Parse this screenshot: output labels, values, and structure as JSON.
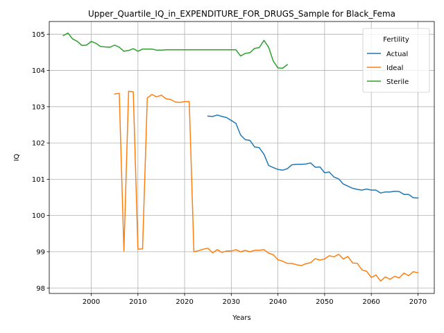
{
  "chart_data": {
    "type": "line",
    "title": "Upper_Quartile_IQ_in_EXPENDITURE_FOR_DRUGS_Sample for Black_Fema",
    "xlabel": "Years",
    "ylabel": "IQ",
    "xlim": [
      1991,
      2073.5
    ],
    "ylim": [
      97.85,
      105.35
    ],
    "xticks": [
      2000,
      2010,
      2020,
      2030,
      2040,
      2050,
      2060,
      2070
    ],
    "yticks": [
      98,
      99,
      100,
      101,
      102,
      103,
      104,
      105
    ],
    "grid": true,
    "legend": {
      "title": "Fertility",
      "placement": "top-right"
    },
    "series": [
      {
        "name": "Actual",
        "color": "#1f77b4",
        "x": [
          2025,
          2026,
          2027,
          2028,
          2029,
          2030,
          2031,
          2032,
          2033,
          2034,
          2035,
          2036,
          2037,
          2038,
          2039,
          2040,
          2041,
          2042,
          2043,
          2044,
          2045,
          2046,
          2047,
          2048,
          2049,
          2050,
          2051,
          2052,
          2053,
          2054,
          2055,
          2056,
          2057,
          2058,
          2059,
          2060,
          2061,
          2062,
          2063,
          2064,
          2065,
          2066,
          2067,
          2068,
          2069,
          2070
        ],
        "y": [
          102.74,
          102.73,
          102.77,
          102.73,
          102.7,
          102.62,
          102.54,
          102.22,
          102.09,
          102.07,
          101.89,
          101.87,
          101.69,
          101.38,
          101.32,
          101.27,
          101.25,
          101.29,
          101.4,
          101.41,
          101.41,
          101.42,
          101.45,
          101.33,
          101.34,
          101.18,
          101.2,
          101.06,
          101.01,
          100.87,
          100.81,
          100.75,
          100.72,
          100.7,
          100.73,
          100.7,
          100.7,
          100.62,
          100.65,
          100.65,
          100.67,
          100.66,
          100.58,
          100.58,
          100.49,
          100.48
        ]
      },
      {
        "name": "Ideal",
        "color": "#ff7f0e",
        "x": [
          2005,
          2006,
          2007,
          2008,
          2009,
          2010,
          2011,
          2012,
          2013,
          2014,
          2015,
          2016,
          2017,
          2018,
          2019,
          2020,
          2021,
          2022,
          2023,
          2024,
          2025,
          2026,
          2027,
          2028,
          2029,
          2030,
          2031,
          2032,
          2033,
          2034,
          2035,
          2036,
          2037,
          2038,
          2039,
          2040,
          2041,
          2042,
          2043,
          2044,
          2045,
          2046,
          2047,
          2048,
          2049,
          2050,
          2051,
          2052,
          2053,
          2054,
          2055,
          2056,
          2057,
          2058,
          2059,
          2060,
          2061,
          2062,
          2063,
          2064,
          2065,
          2066,
          2067,
          2068,
          2069,
          2070
        ],
        "y": [
          103.35,
          103.37,
          99.02,
          103.43,
          103.41,
          99.07,
          99.08,
          103.24,
          103.34,
          103.27,
          103.32,
          103.22,
          103.2,
          103.13,
          103.12,
          103.14,
          103.14,
          99.0,
          99.03,
          99.07,
          99.1,
          98.97,
          99.06,
          98.98,
          99.02,
          99.02,
          99.06,
          99.0,
          99.04,
          99.0,
          99.04,
          99.04,
          99.06,
          98.96,
          98.92,
          98.78,
          98.74,
          98.68,
          98.68,
          98.64,
          98.62,
          98.67,
          98.7,
          98.81,
          98.77,
          98.8,
          98.89,
          98.86,
          98.93,
          98.8,
          98.87,
          98.69,
          98.68,
          98.5,
          98.46,
          98.29,
          98.36,
          98.19,
          98.31,
          98.24,
          98.32,
          98.28,
          98.41,
          98.34,
          98.45,
          98.42
        ]
      },
      {
        "name": "Sterile",
        "color": "#2ca02c",
        "x": [
          1994,
          1995,
          1996,
          1997,
          1998,
          1999,
          2000,
          2001,
          2002,
          2003,
          2004,
          2005,
          2006,
          2007,
          2008,
          2009,
          2010,
          2011,
          2012,
          2013,
          2014,
          2015,
          2016,
          2017,
          2018,
          2019,
          2020,
          2021,
          2022,
          2023,
          2024,
          2025,
          2026,
          2027,
          2028,
          2029,
          2030,
          2031,
          2032,
          2033,
          2034,
          2035,
          2036,
          2037,
          2038,
          2039,
          2040,
          2041,
          2042
        ],
        "y": [
          104.96,
          105.03,
          104.87,
          104.8,
          104.69,
          104.7,
          104.8,
          104.75,
          104.66,
          104.65,
          104.64,
          104.7,
          104.64,
          104.53,
          104.55,
          104.6,
          104.53,
          104.59,
          104.59,
          104.59,
          104.56,
          104.56,
          104.57,
          104.57,
          104.57,
          104.57,
          104.57,
          104.57,
          104.57,
          104.57,
          104.57,
          104.57,
          104.57,
          104.57,
          104.57,
          104.57,
          104.57,
          104.57,
          104.4,
          104.47,
          104.49,
          104.61,
          104.63,
          104.83,
          104.64,
          104.26,
          104.07,
          104.06,
          104.16
        ]
      }
    ]
  }
}
